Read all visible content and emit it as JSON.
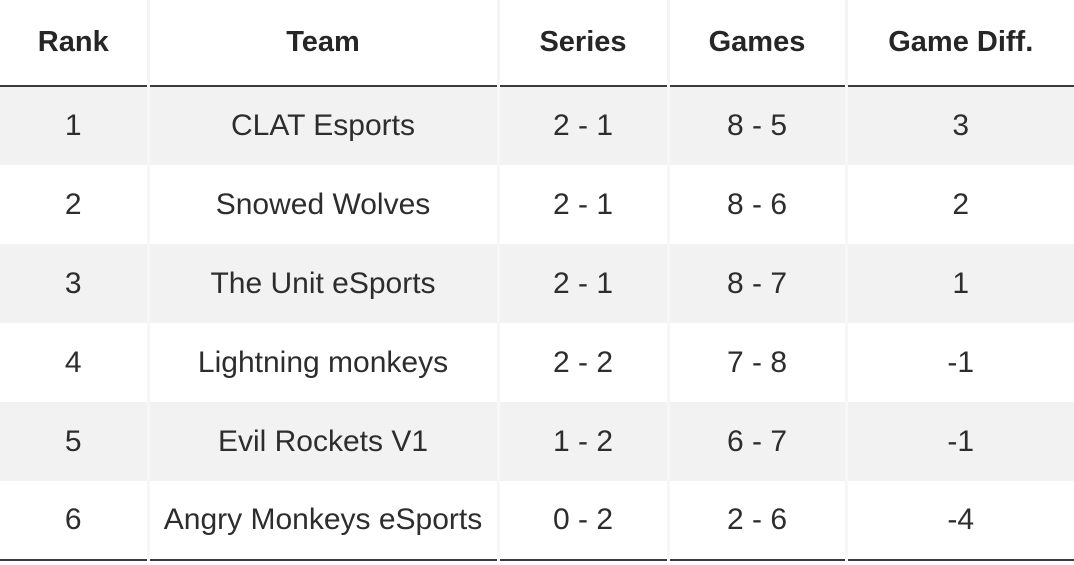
{
  "table": {
    "headers": {
      "rank": "Rank",
      "team": "Team",
      "series": "Series",
      "games": "Games",
      "game_diff": "Game Diff."
    },
    "rows": [
      {
        "rank": "1",
        "team": "CLAT Esports",
        "series": "2 - 1",
        "games": "8 - 5",
        "game_diff": "3"
      },
      {
        "rank": "2",
        "team": "Snowed Wolves",
        "series": "2 - 1",
        "games": "8 - 6",
        "game_diff": "2"
      },
      {
        "rank": "3",
        "team": "The Unit eSports",
        "series": "2 - 1",
        "games": "8 - 7",
        "game_diff": "1"
      },
      {
        "rank": "4",
        "team": "Lightning monkeys",
        "series": "2 - 2",
        "games": "7 - 8",
        "game_diff": "-1"
      },
      {
        "rank": "5",
        "team": "Evil Rockets V1",
        "series": "1 - 2",
        "games": "6 - 7",
        "game_diff": "-1"
      },
      {
        "rank": "6",
        "team": "Angry Monkeys eSports",
        "series": "0 - 2",
        "games": "2 - 6",
        "game_diff": "-4"
      }
    ]
  }
}
